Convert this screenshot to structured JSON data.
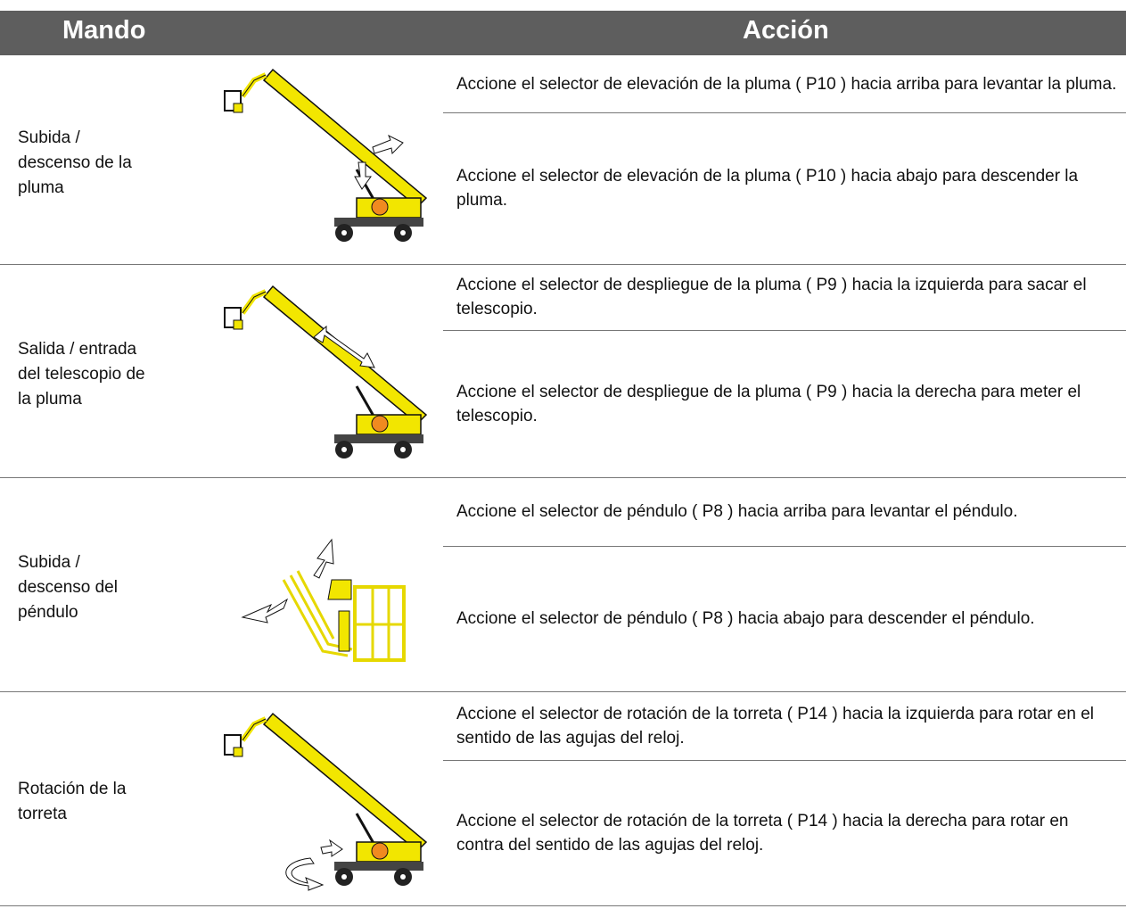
{
  "header": {
    "control": "Mando",
    "action": "Acción"
  },
  "rows": [
    {
      "control": [
        "Subida /",
        "descenso de la",
        "pluma"
      ],
      "actions": [
        "Accione el selector de elevación de la pluma ( P10 ) hacia arriba para levantar la pluma.",
        "Accione el selector de elevación de la pluma ( P10 ) hacia abajo para descender la pluma."
      ]
    },
    {
      "control": [
        "Salida / entrada",
        "del telescopio de",
        "la pluma"
      ],
      "actions": [
        "Accione el selector de despliegue de la pluma ( P9 ) hacia la izquierda para sacar el telescopio.",
        "Accione el selector de despliegue de la pluma ( P9 ) hacia la derecha para meter el telescopio."
      ]
    },
    {
      "control": [
        "Subida /",
        "descenso del",
        "péndulo"
      ],
      "actions": [
        "Accione el selector de péndulo ( P8 ) hacia arriba para levantar el péndulo.",
        "Accione el selector de péndulo ( P8 ) hacia abajo para descender el péndulo."
      ]
    },
    {
      "control": [
        "Rotación de la",
        "torreta"
      ],
      "actions": [
        "Accione el selector de rotación de la torreta ( P14 ) hacia la izquierda para rotar en el sentido de las agujas del reloj.",
        "Accione el selector de rotación de la torreta ( P14 ) hacia la derecha para rotar en contra del sentido de las agujas del reloj."
      ]
    }
  ]
}
